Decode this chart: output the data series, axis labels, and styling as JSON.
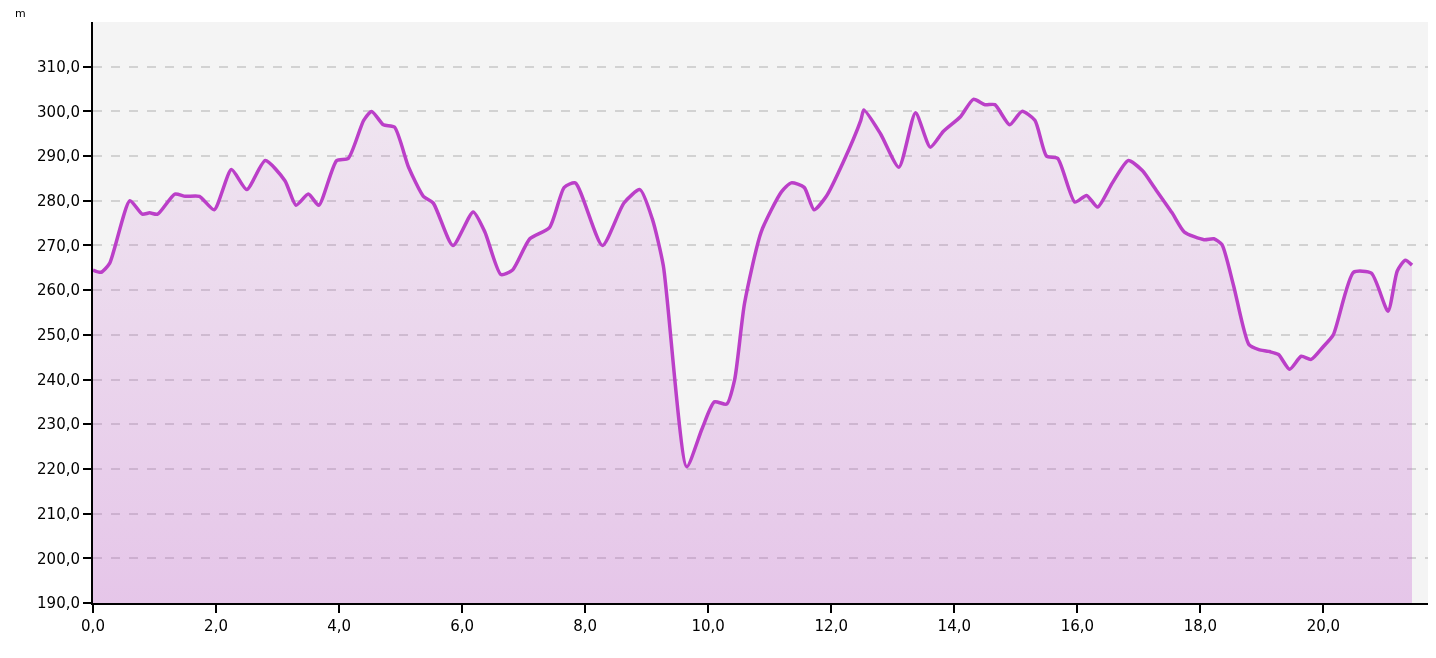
{
  "chart_data": {
    "type": "area",
    "ylabel": "m",
    "series": [
      {
        "color": "#bb3fc8",
        "x": [
          0,
          0.13,
          0.27,
          0.6,
          0.8,
          0.92,
          1.05,
          1.33,
          1.5,
          1.73,
          1.97,
          2.25,
          2.5,
          2.8,
          3.12,
          3.3,
          3.5,
          3.67,
          3.96,
          4.15,
          4.4,
          4.53,
          4.72,
          4.9,
          5.13,
          5.37,
          5.53,
          5.85,
          6.18,
          6.37,
          6.63,
          6.82,
          7.1,
          7.42,
          7.66,
          7.84,
          8.28,
          8.63,
          8.89,
          9.09,
          9.27,
          9.65,
          9.9,
          10.1,
          10.3,
          10.43,
          10.59,
          10.86,
          11.19,
          11.35,
          11.56,
          11.72,
          11.92,
          12.19,
          12.48,
          12.53,
          12.8,
          13.1,
          13.37,
          13.61,
          13.82,
          14.1,
          14.31,
          14.5,
          14.66,
          14.9,
          15.1,
          15.31,
          15.5,
          15.68,
          15.96,
          16.15,
          16.33,
          16.57,
          16.83,
          17.06,
          17.25,
          17.54,
          17.74,
          18.06,
          18.22,
          18.35,
          18.54,
          18.79,
          18.95,
          19.11,
          19.27,
          19.45,
          19.64,
          19.8,
          20.0,
          20.16,
          20.49,
          20.78,
          21.05,
          21.2,
          21.33,
          21.44
        ],
        "values": [
          264.5,
          264,
          266,
          280,
          277,
          277.3,
          277,
          281.5,
          281,
          281,
          278,
          287,
          282.5,
          289,
          284.5,
          279,
          281.5,
          279,
          289,
          289.5,
          298,
          300,
          297,
          296.5,
          287.5,
          281,
          279.5,
          270,
          277.5,
          273,
          263.5,
          264.5,
          271.5,
          274,
          283,
          284,
          270,
          279.5,
          282.5,
          276,
          265.5,
          220.5,
          229,
          235,
          234.5,
          240,
          257,
          273,
          282,
          284,
          283,
          278,
          281,
          288.5,
          298,
          300.3,
          295,
          287.5,
          299.7,
          292,
          295.5,
          298.8,
          302.7,
          301.5,
          301.5,
          297,
          300,
          298,
          290,
          289.5,
          279.7,
          281.2,
          278.6,
          284,
          289,
          286.7,
          283,
          277.3,
          273,
          271.3,
          271.5,
          270.2,
          261,
          247.8,
          246.7,
          246.3,
          245.6,
          242.3,
          245.2,
          244.5,
          247.4,
          250,
          264,
          263.8,
          255.3,
          264.3,
          266.7,
          265.6
        ]
      }
    ],
    "xlim": [
      0,
      21.7
    ],
    "ylim": [
      190,
      320
    ],
    "xticks": [
      {
        "value": 0,
        "label": "0,0"
      },
      {
        "value": 2,
        "label": "2,0"
      },
      {
        "value": 4,
        "label": "4,0"
      },
      {
        "value": 6,
        "label": "6,0"
      },
      {
        "value": 8,
        "label": "8,0"
      },
      {
        "value": 10,
        "label": "10,0"
      },
      {
        "value": 12,
        "label": "12,0"
      },
      {
        "value": 14,
        "label": "14,0"
      },
      {
        "value": 16,
        "label": "16,0"
      },
      {
        "value": 18,
        "label": "18,0"
      },
      {
        "value": 20,
        "label": "20,0"
      }
    ],
    "yticks": [
      {
        "value": 190,
        "label": "190,0"
      },
      {
        "value": 200,
        "label": "200,0"
      },
      {
        "value": 210,
        "label": "210,0"
      },
      {
        "value": 220,
        "label": "220,0"
      },
      {
        "value": 230,
        "label": "230,0"
      },
      {
        "value": 240,
        "label": "240,0"
      },
      {
        "value": 250,
        "label": "250,0"
      },
      {
        "value": 260,
        "label": "260,0"
      },
      {
        "value": 270,
        "label": "270,0"
      },
      {
        "value": 280,
        "label": "280,0"
      },
      {
        "value": 290,
        "label": "290,0"
      },
      {
        "value": 300,
        "label": "300,0"
      },
      {
        "value": 310,
        "label": "310,0"
      }
    ],
    "grid": "y",
    "legend": false,
    "marker": "none",
    "line_style": "solid"
  }
}
